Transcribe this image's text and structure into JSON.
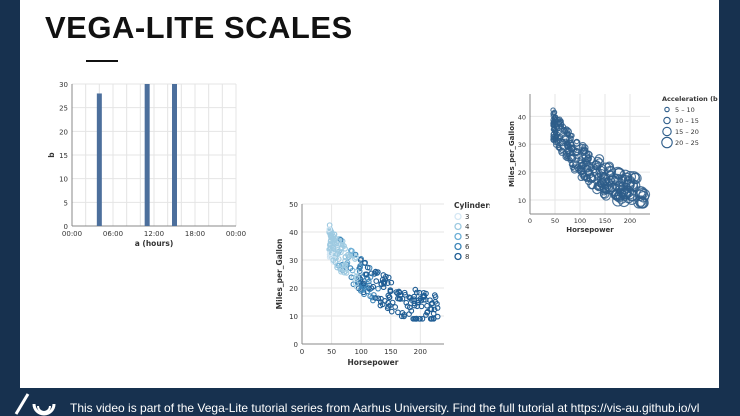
{
  "slide": {
    "title": "VEGA-LITE SCALES",
    "footer_text": "This video is part of the Vega-Lite tutorial series from Aarhus University. Find the full tutorial at https://vis-au.github.io/vl"
  },
  "colors": {
    "bar": "#4c6f9c",
    "background": "#17314f",
    "scatter_dark": "#2e5d8a"
  },
  "chart_data": [
    {
      "type": "bar",
      "xlabel": "a (hours)",
      "ylabel": "b",
      "x_ticks": [
        "00:00",
        "06:00",
        "12:00",
        "18:00",
        "00:00"
      ],
      "y_ticks": [
        "0",
        "5",
        "10",
        "15",
        "20",
        "25",
        "30"
      ],
      "ylim": [
        0,
        30
      ],
      "bars": [
        {
          "hour": 4,
          "value": 28
        },
        {
          "hour": 11,
          "value": 30
        },
        {
          "hour": 15,
          "value": 30
        }
      ]
    },
    {
      "type": "scatter",
      "xlabel": "Horsepower",
      "ylabel": "Miles_per_Gallon",
      "x_ticks": [
        "0",
        "50",
        "100",
        "150",
        "200"
      ],
      "y_ticks": [
        "0",
        "10",
        "20",
        "30",
        "40",
        "50"
      ],
      "xlim": [
        0,
        240
      ],
      "ylim": [
        0,
        50
      ],
      "legend": {
        "title": "Cylinders",
        "placement": "right",
        "entries": [
          "3",
          "4",
          "5",
          "6",
          "8"
        ],
        "colors": [
          "#d6e8f4",
          "#9ecae1",
          "#6baed6",
          "#3d85b8",
          "#1f5d94"
        ]
      }
    },
    {
      "type": "scatter",
      "xlabel": "Horsepower",
      "ylabel": "Miles_per_Gallon",
      "x_ticks": [
        "0",
        "50",
        "100",
        "150",
        "200"
      ],
      "y_ticks": [
        "10",
        "20",
        "30",
        "40"
      ],
      "xlim": [
        0,
        240
      ],
      "ylim": [
        5,
        48
      ],
      "legend": {
        "title": "Acceleration (binned)",
        "placement": "right",
        "entries": [
          "5 – 10",
          "10 – 15",
          "15 – 20",
          "20 – 25"
        ]
      }
    }
  ]
}
